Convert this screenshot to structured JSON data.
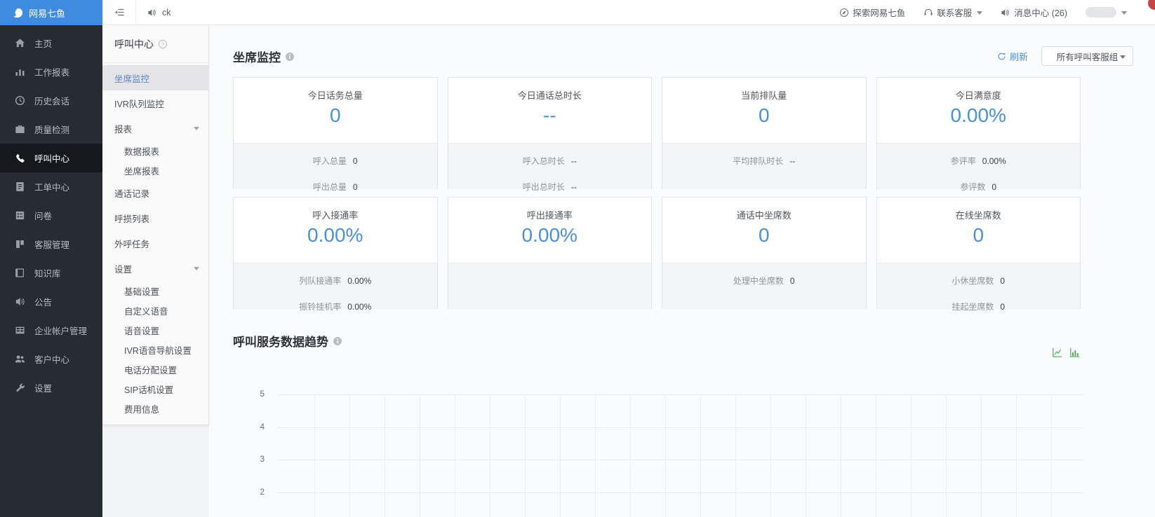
{
  "topbar": {
    "logo_text": "网易七鱼",
    "agent_status": "ck",
    "explore_label": "探索网易七鱼",
    "contact_label": "联系客服",
    "messages_label": "消息中心 (26)"
  },
  "sidebar": {
    "items": [
      {
        "label": "主页",
        "icon": "home-icon",
        "active": false
      },
      {
        "label": "工作报表",
        "icon": "work-report-icon",
        "active": false
      },
      {
        "label": "历史会话",
        "icon": "history-icon",
        "active": false
      },
      {
        "label": "质量检测",
        "icon": "quality-icon",
        "active": false
      },
      {
        "label": "呼叫中心",
        "icon": "call-center-icon",
        "active": true
      },
      {
        "label": "工单中心",
        "icon": "ticket-icon",
        "active": false
      },
      {
        "label": "问卷",
        "icon": "survey-icon",
        "active": false
      },
      {
        "label": "客服管理",
        "icon": "staff-manage-icon",
        "active": false
      },
      {
        "label": "知识库",
        "icon": "knowledge-icon",
        "active": false
      },
      {
        "label": "公告",
        "icon": "announcement-icon",
        "active": false
      },
      {
        "label": "企业帐户管理",
        "icon": "enterprise-icon",
        "active": false
      },
      {
        "label": "客户中心",
        "icon": "customer-icon",
        "active": false
      },
      {
        "label": "设置",
        "icon": "settings-icon",
        "active": false
      }
    ]
  },
  "submenu": {
    "title": "呼叫中心",
    "items": [
      {
        "label": "坐席监控",
        "active": true,
        "sub": false,
        "caret": false
      },
      {
        "label": "IVR队列监控",
        "active": false,
        "sub": false,
        "caret": false
      },
      {
        "label": "报表",
        "active": false,
        "sub": false,
        "caret": true
      },
      {
        "label": "数据报表",
        "active": false,
        "sub": true,
        "caret": false
      },
      {
        "label": "坐席报表",
        "active": false,
        "sub": true,
        "caret": false
      },
      {
        "label": "通话记录",
        "active": false,
        "sub": false,
        "caret": false
      },
      {
        "label": "呼损列表",
        "active": false,
        "sub": false,
        "caret": false
      },
      {
        "label": "外呼任务",
        "active": false,
        "sub": false,
        "caret": false
      },
      {
        "label": "设置",
        "active": false,
        "sub": false,
        "caret": true
      },
      {
        "label": "基础设置",
        "active": false,
        "sub": true,
        "caret": false
      },
      {
        "label": "自定义语音",
        "active": false,
        "sub": true,
        "caret": false
      },
      {
        "label": "语音设置",
        "active": false,
        "sub": true,
        "caret": false
      },
      {
        "label": "IVR语音导航设置",
        "active": false,
        "sub": true,
        "caret": false
      },
      {
        "label": "电话分配设置",
        "active": false,
        "sub": true,
        "caret": false
      },
      {
        "label": "SIP话机设置",
        "active": false,
        "sub": true,
        "caret": false
      },
      {
        "label": "费用信息",
        "active": false,
        "sub": true,
        "caret": false
      }
    ]
  },
  "monitor": {
    "title": "坐席监控",
    "refresh_label": "刷新",
    "group_select": "所有呼叫客服组",
    "cards": [
      {
        "title": "今日话务总量",
        "value": "0",
        "subs": [
          {
            "label": "呼入总量",
            "value": "0"
          },
          {
            "label": "呼出总量",
            "value": "0"
          }
        ]
      },
      {
        "title": "今日通话总时长",
        "value": "--",
        "subs": [
          {
            "label": "呼入总时长",
            "value": "--"
          },
          {
            "label": "呼出总时长",
            "value": "--"
          }
        ]
      },
      {
        "title": "当前排队量",
        "value": "0",
        "subs": [
          {
            "label": "平均排队时长",
            "value": "--"
          }
        ]
      },
      {
        "title": "今日满意度",
        "value": "0.00%",
        "subs": [
          {
            "label": "参评率",
            "value": "0.00%"
          },
          {
            "label": "参评数",
            "value": "0"
          }
        ]
      },
      {
        "title": "呼入接通率",
        "value": "0.00%",
        "subs": [
          {
            "label": "列队接通率",
            "value": "0.00%"
          },
          {
            "label": "振铃挂机率",
            "value": "0.00%"
          }
        ]
      },
      {
        "title": "呼出接通率",
        "value": "0.00%",
        "subs": []
      },
      {
        "title": "通话中坐席数",
        "value": "0",
        "subs": [
          {
            "label": "处理中坐席数",
            "value": "0"
          }
        ]
      },
      {
        "title": "在线坐席数",
        "value": "0",
        "subs": [
          {
            "label": "小休坐席数",
            "value": "0"
          },
          {
            "label": "挂起坐席数",
            "value": "0"
          }
        ]
      }
    ]
  },
  "trend": {
    "title": "呼叫服务数据趋势",
    "chart_data": {
      "type": "line",
      "title": "呼叫服务数据趋势",
      "categories": [],
      "series": [],
      "empty": true,
      "grid": true,
      "y_ticks_visible": [
        5,
        4,
        3,
        2
      ]
    }
  },
  "colors": {
    "brand_blue": "#3d8ce0",
    "accent_blue": "#4a90d9",
    "chart_icon_green": "#52ab55",
    "sidebar_dark": "#272b33"
  }
}
